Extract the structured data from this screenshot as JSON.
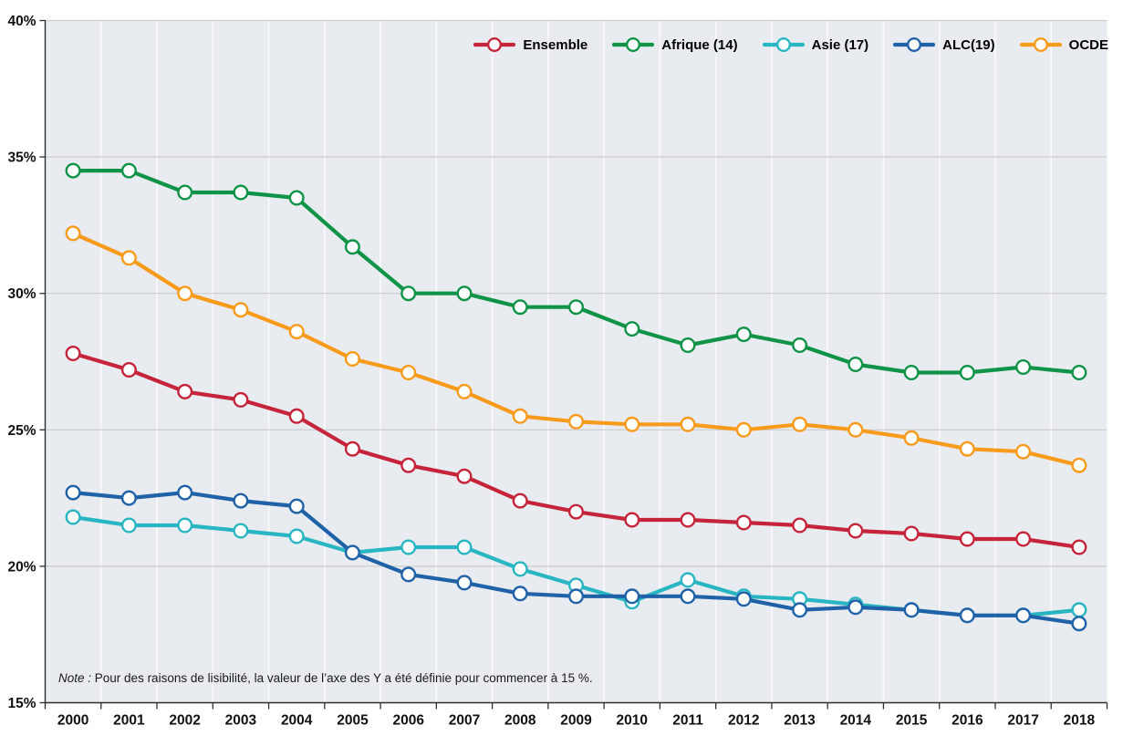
{
  "chart_data": {
    "type": "line",
    "title": "",
    "xlabel": "",
    "ylabel": "",
    "x_categories": [
      "2000",
      "2001",
      "2002",
      "2003",
      "2004",
      "2005",
      "2006",
      "2007",
      "2008",
      "2009",
      "2010",
      "2011",
      "2012",
      "2013",
      "2014",
      "2015",
      "2016",
      "2017",
      "2018"
    ],
    "y_axis": {
      "min": 15,
      "max": 40,
      "step": 5,
      "tick_labels": [
        "40%",
        "35%",
        "30%",
        "25%",
        "20%",
        "15%"
      ],
      "format": "percent"
    },
    "grid": {
      "horizontal": true,
      "vertical": true
    },
    "legend_position": "top-right-inside",
    "series": [
      {
        "name": "Ensemble",
        "color": "#c6243a",
        "values": [
          27.8,
          27.2,
          26.4,
          26.1,
          25.5,
          24.3,
          23.7,
          23.3,
          22.4,
          22.0,
          21.7,
          21.7,
          21.6,
          21.5,
          21.3,
          21.2,
          21.0,
          21.0,
          20.7
        ]
      },
      {
        "name": "Afrique (14)",
        "color": "#0f9347",
        "values": [
          34.5,
          34.5,
          33.7,
          33.7,
          33.5,
          31.7,
          30.0,
          30.0,
          29.5,
          29.5,
          28.7,
          28.1,
          28.5,
          28.1,
          27.4,
          27.1,
          27.1,
          27.3,
          27.1
        ]
      },
      {
        "name": "Asie (17)",
        "color": "#28b6c3",
        "values": [
          21.8,
          21.5,
          21.5,
          21.3,
          21.1,
          20.5,
          20.7,
          20.7,
          19.9,
          19.3,
          18.7,
          19.5,
          18.9,
          18.8,
          18.6,
          18.4,
          18.2,
          18.2,
          18.4
        ]
      },
      {
        "name": "ALC(19)",
        "color": "#1f62a8",
        "values": [
          22.7,
          22.5,
          22.7,
          22.4,
          22.2,
          20.5,
          19.7,
          19.4,
          19.0,
          18.9,
          18.9,
          18.9,
          18.8,
          18.4,
          18.5,
          18.4,
          18.2,
          18.2,
          17.9
        ]
      },
      {
        "name": "OCDE",
        "color": "#f89b1b",
        "values": [
          32.2,
          31.3,
          30.0,
          29.4,
          28.6,
          27.6,
          27.1,
          26.4,
          25.5,
          25.3,
          25.2,
          25.2,
          25.0,
          25.2,
          25.0,
          24.7,
          24.3,
          24.2,
          23.7
        ]
      }
    ]
  },
  "note": {
    "prefix": "Note :",
    "text": " Pour des raisons de lisibilité, la valeur de l’axe des Y a été définie pour commencer à 15 %."
  },
  "colors": {
    "plot_bg": "#e8ebef",
    "h_grid": "#cbcdd0",
    "v_grid": "#fafbfd",
    "axis": "#2f2f2f",
    "tick_text": "#111111"
  }
}
